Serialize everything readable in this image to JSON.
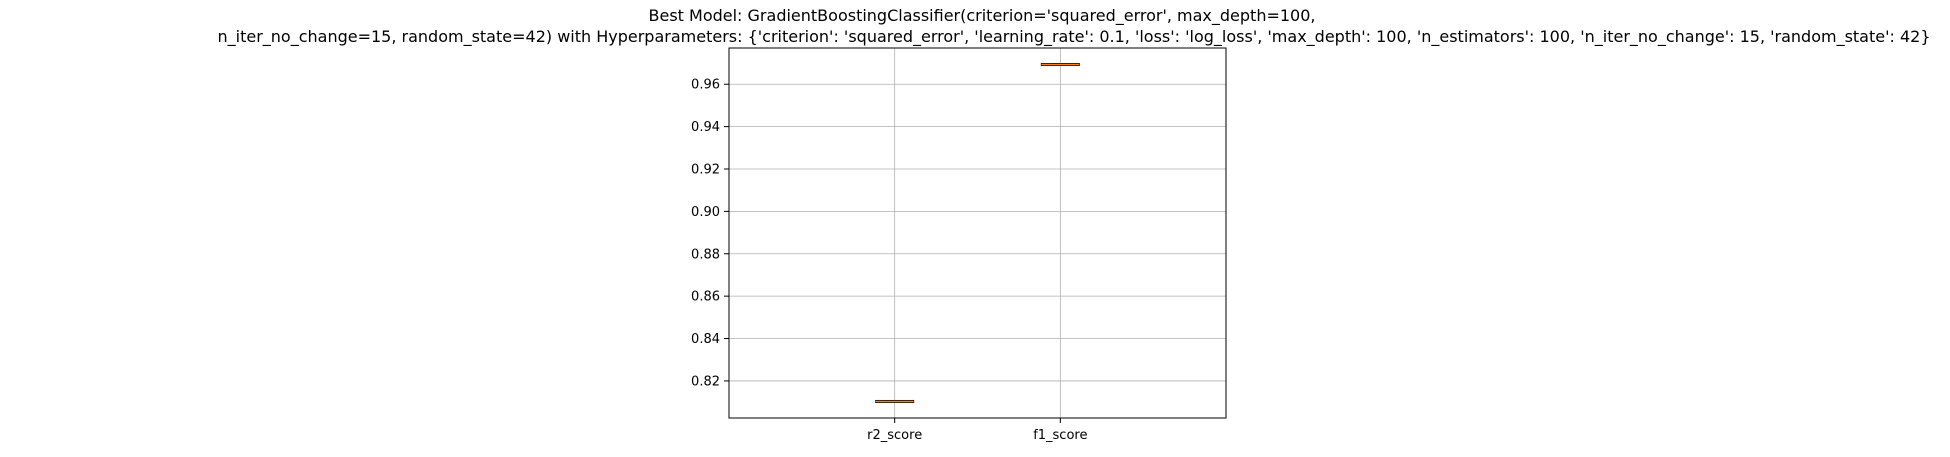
{
  "chart_data": {
    "type": "box",
    "title": [
      "Best Model: GradientBoostingClassifier(criterion='squared_error', max_depth=100,",
      "n_iter_no_change=15, random_state=42) with Hyperparameters: {'criterion': 'squared_error', 'learning_rate': 0.1, 'loss': 'log_loss', 'max_depth': 100, 'n_estimators': 100, 'n_iter_no_change': 15, 'random_state': 42}"
    ],
    "categories": [
      "r2_score",
      "f1_score"
    ],
    "values": [
      0.8103,
      0.9693
    ],
    "ylim": [
      0.8025,
      0.9771
    ],
    "yticks": [
      0.82,
      0.84,
      0.86,
      0.88,
      0.9,
      0.92,
      0.94,
      0.96
    ],
    "ytick_labels": [
      "0.82",
      "0.84",
      "0.86",
      "0.88",
      "0.90",
      "0.92",
      "0.94",
      "0.96"
    ],
    "grid": true,
    "colors": {
      "box": "#000000",
      "median": "#ff7f0e",
      "grid": "#b0b0b0",
      "axes": "#000000"
    }
  }
}
